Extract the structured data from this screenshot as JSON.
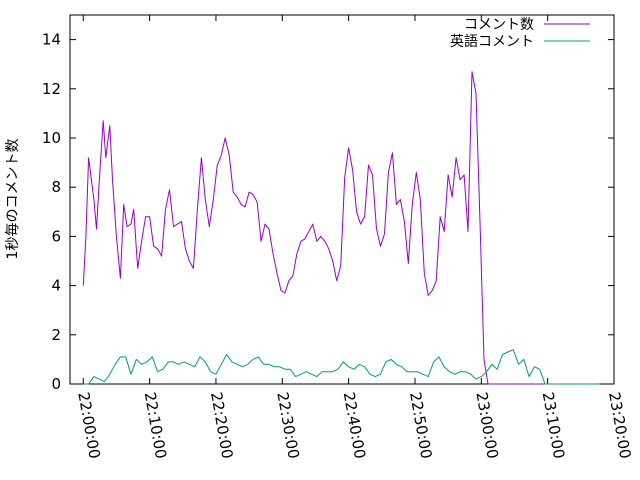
{
  "chart_data": {
    "type": "line",
    "title": "",
    "xlabel": "",
    "ylabel": "1秒毎のコメント数",
    "x_ticks": [
      "22:00:00",
      "22:10:00",
      "22:20:00",
      "22:30:00",
      "22:40:00",
      "22:50:00",
      "23:00:00",
      "23:10:00",
      "23:20:00"
    ],
    "xlim_minutes": [
      -2,
      80
    ],
    "y_ticks": [
      "0",
      "2",
      "4",
      "6",
      "8",
      "10",
      "12",
      "14"
    ],
    "ylim": [
      0,
      15
    ],
    "x_axis": "time (minutes after 22:00:00)",
    "grid": false,
    "legend_position": "top-right",
    "series": [
      {
        "name": "コメント数",
        "color": "#9400d3",
        "x": [
          0.0,
          0.4,
          0.8,
          1.6,
          2.0,
          2.4,
          3.0,
          3.4,
          4.0,
          4.4,
          5.0,
          5.6,
          6.1,
          6.6,
          7.2,
          7.6,
          8.2,
          8.8,
          9.4,
          10.0,
          10.6,
          11.2,
          11.8,
          12.4,
          13.0,
          13.6,
          14.2,
          14.8,
          15.4,
          16.0,
          16.6,
          17.2,
          17.8,
          18.4,
          19.0,
          19.6,
          20.2,
          20.8,
          21.4,
          22.0,
          22.6,
          23.2,
          23.8,
          24.4,
          25.0,
          25.6,
          26.2,
          26.8,
          27.4,
          28.0,
          28.6,
          29.2,
          29.8,
          30.4,
          31.0,
          31.6,
          32.2,
          32.8,
          33.4,
          34.0,
          34.6,
          35.2,
          35.8,
          36.4,
          37.0,
          37.6,
          38.2,
          38.8,
          39.4,
          40.0,
          40.6,
          41.2,
          41.8,
          42.4,
          43.0,
          43.6,
          44.2,
          44.8,
          45.4,
          46.0,
          46.6,
          47.2,
          47.8,
          48.4,
          49.0,
          49.6,
          50.2,
          50.8,
          51.4,
          52.0,
          52.6,
          53.2,
          53.8,
          54.4,
          55.0,
          55.6,
          56.2,
          56.8,
          57.4,
          58.0,
          58.6,
          59.2,
          59.8,
          60.4,
          61.0,
          61.6,
          62.2,
          62.8,
          63.4,
          64.0,
          64.6,
          65.2,
          65.8,
          66.4,
          67.0,
          67.6,
          68.2,
          68.8,
          69.4,
          70.0,
          70.6,
          71.2,
          71.8,
          72.4,
          73.0,
          73.6,
          74.2,
          74.8,
          75.4,
          76.0,
          76.6,
          77.0,
          77.4,
          77.8
        ],
        "values": [
          4.0,
          6.0,
          9.2,
          7.5,
          6.3,
          8.2,
          10.7,
          9.2,
          10.5,
          8.3,
          6.0,
          4.3,
          7.3,
          6.4,
          6.5,
          7.1,
          4.7,
          5.8,
          6.8,
          6.8,
          5.6,
          5.5,
          5.2,
          7.1,
          7.9,
          6.4,
          6.5,
          6.6,
          5.5,
          5.0,
          4.7,
          7.1,
          9.2,
          7.5,
          6.4,
          7.5,
          8.9,
          9.3,
          10.0,
          9.3,
          7.8,
          7.6,
          7.3,
          7.2,
          7.8,
          7.7,
          7.4,
          5.8,
          6.5,
          6.3,
          5.3,
          4.5,
          3.8,
          3.7,
          4.2,
          4.4,
          5.3,
          5.8,
          5.9,
          6.2,
          6.5,
          5.8,
          6.0,
          5.8,
          5.5,
          5.0,
          4.2,
          4.8,
          8.4,
          9.6,
          8.7,
          7.0,
          6.5,
          6.8,
          8.9,
          8.5,
          6.3,
          5.6,
          6.1,
          8.6,
          9.4,
          7.3,
          7.5,
          6.6,
          4.9,
          7.3,
          8.6,
          7.5,
          4.5,
          3.6,
          3.8,
          4.2,
          6.8,
          6.2,
          8.5,
          7.6,
          9.2,
          8.3,
          8.5,
          6.2,
          12.7,
          11.8,
          6.6,
          1.0,
          0.0,
          0.0,
          0.0,
          0.0,
          0.0,
          0.0,
          0.0,
          0.0,
          0.0,
          0.0,
          0.0,
          0.0,
          0.0,
          0.0,
          0.0,
          0.0,
          0.0,
          0.0,
          0.0,
          0.0,
          0.0,
          0.0,
          0.0,
          0.0,
          0.0,
          0.0,
          0.0,
          0.0,
          0.0,
          0.0
        ]
      },
      {
        "name": "英語コメント",
        "color": "#009e73",
        "x": [
          0.0,
          0.8,
          1.6,
          2.4,
          3.2,
          4.0,
          4.8,
          5.6,
          6.4,
          7.2,
          8.0,
          8.8,
          9.6,
          10.4,
          11.2,
          12.0,
          12.8,
          13.6,
          14.4,
          15.2,
          16.0,
          16.8,
          17.6,
          18.4,
          19.2,
          20.0,
          20.8,
          21.6,
          22.4,
          23.2,
          24.0,
          24.8,
          25.6,
          26.4,
          27.2,
          28.0,
          28.8,
          29.6,
          30.4,
          31.2,
          32.0,
          32.8,
          33.6,
          34.4,
          35.2,
          36.0,
          36.8,
          37.6,
          38.4,
          39.2,
          40.0,
          40.8,
          41.6,
          42.4,
          43.2,
          44.0,
          44.8,
          45.6,
          46.4,
          47.2,
          48.0,
          48.8,
          49.6,
          50.4,
          51.2,
          52.0,
          52.8,
          53.6,
          54.4,
          55.2,
          56.0,
          56.8,
          57.6,
          58.4,
          59.2,
          60.0,
          60.8,
          61.6,
          62.4,
          63.2,
          64.0,
          64.8,
          65.6,
          66.4,
          67.2,
          68.0,
          68.8,
          69.6,
          70.4,
          71.2,
          72.0,
          72.8,
          73.6,
          74.4,
          75.2,
          76.0,
          76.6,
          77.2,
          77.8
        ],
        "values": [
          0.0,
          0.0,
          0.3,
          0.2,
          0.1,
          0.4,
          0.8,
          1.1,
          1.1,
          0.4,
          1.0,
          0.8,
          0.9,
          1.1,
          0.5,
          0.6,
          0.9,
          0.9,
          0.8,
          0.9,
          0.8,
          0.7,
          1.1,
          0.9,
          0.5,
          0.4,
          0.8,
          1.2,
          0.9,
          0.8,
          0.7,
          0.8,
          1.0,
          1.1,
          0.8,
          0.8,
          0.7,
          0.7,
          0.6,
          0.6,
          0.3,
          0.4,
          0.5,
          0.4,
          0.3,
          0.5,
          0.5,
          0.5,
          0.6,
          0.9,
          0.7,
          0.6,
          0.8,
          0.7,
          0.4,
          0.3,
          0.4,
          0.9,
          1.0,
          0.8,
          0.7,
          0.5,
          0.5,
          0.5,
          0.4,
          0.3,
          0.9,
          1.1,
          0.7,
          0.5,
          0.4,
          0.5,
          0.5,
          0.4,
          0.2,
          0.3,
          0.5,
          0.8,
          0.6,
          1.2,
          1.3,
          1.4,
          0.8,
          1.0,
          0.3,
          0.7,
          0.6,
          0.0,
          0.0,
          0.0,
          0.0,
          0.0,
          0.0,
          0.0,
          0.0,
          0.0,
          0.0,
          0.0,
          0.0
        ]
      }
    ]
  }
}
